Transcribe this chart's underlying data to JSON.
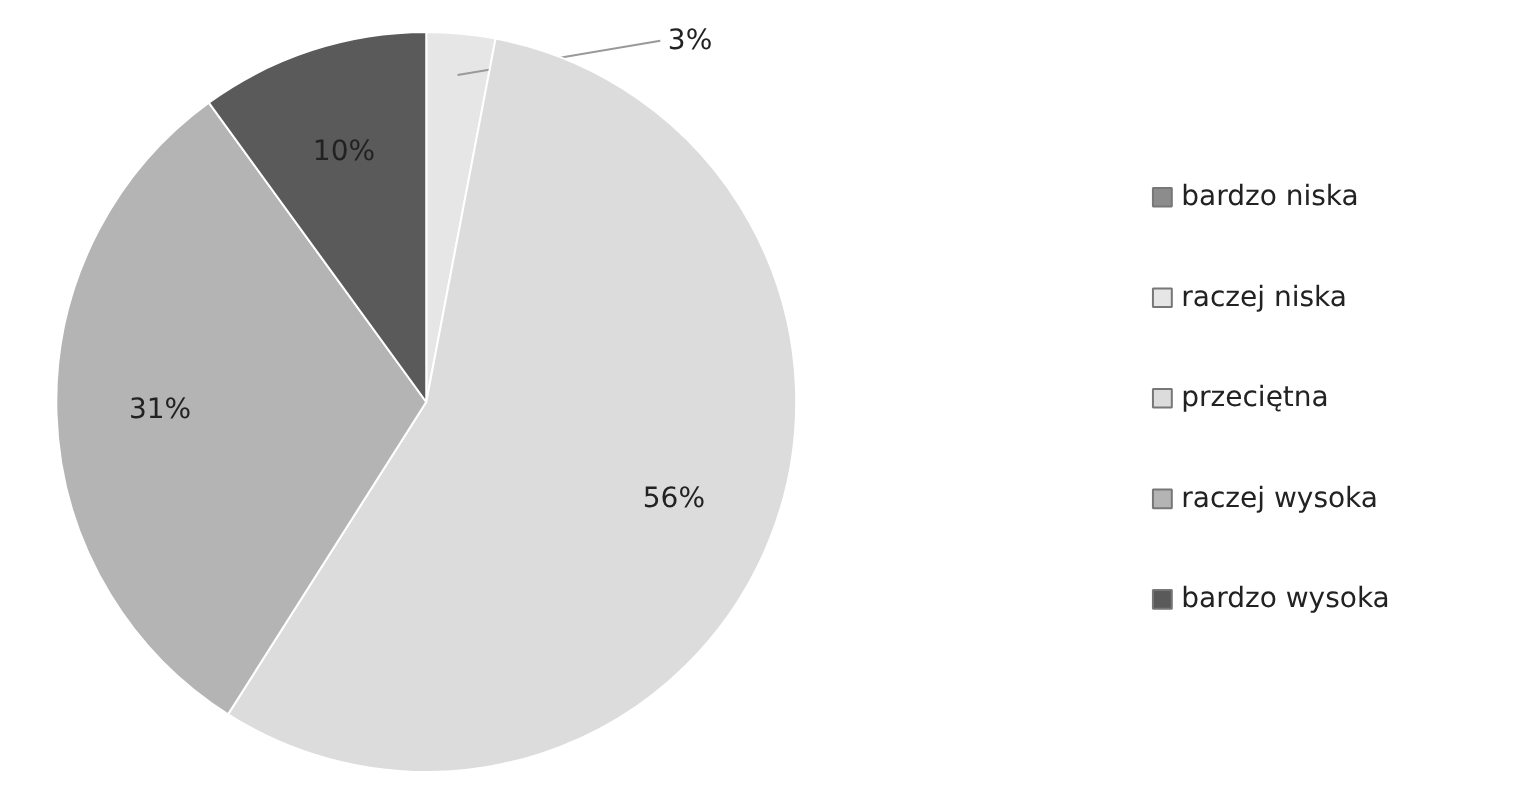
{
  "chart_data": {
    "type": "pie",
    "categories": [
      "bardzo niska",
      "raczej niska",
      "przeciętna",
      "raczej wysoka",
      "bardzo wysoka"
    ],
    "values": [
      0,
      3,
      56,
      31,
      10
    ],
    "colors": [
      "#8c8c8c",
      "#e6e6e6",
      "#dcdcdc",
      "#b4b4b4",
      "#5a5a5a"
    ],
    "value_labels": [
      null,
      "3%",
      "56%",
      "31%",
      "10%"
    ],
    "legend": "right"
  }
}
